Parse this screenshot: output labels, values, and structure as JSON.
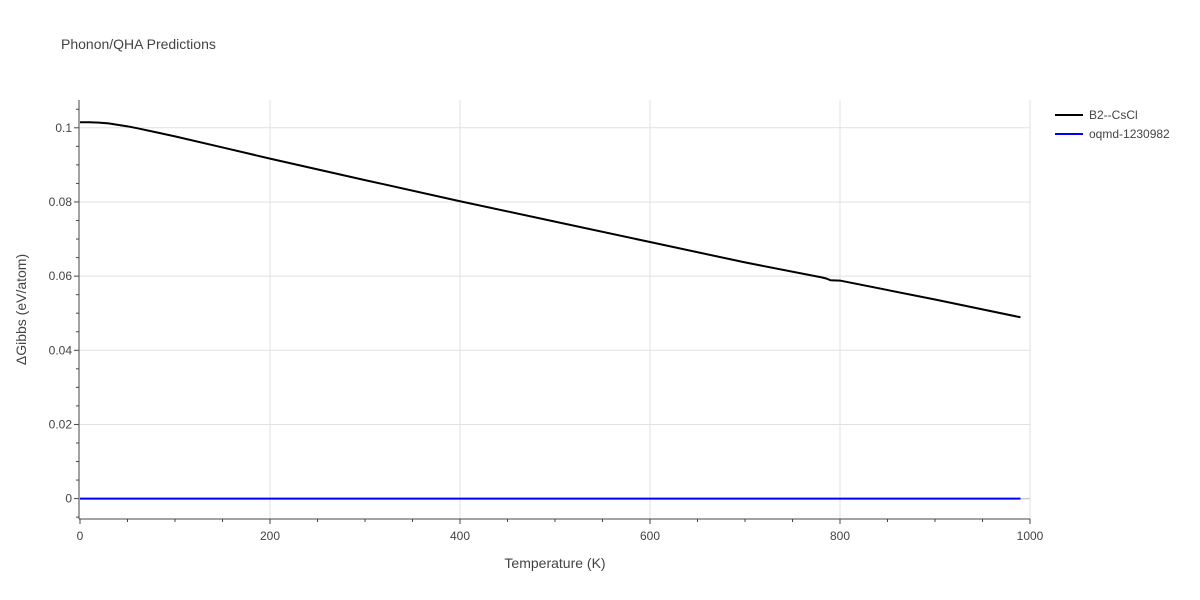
{
  "chart_data": {
    "type": "line",
    "title": "Phonon/QHA Predictions",
    "xlabel": "Temperature (K)",
    "ylabel": "ΔGibbs (eV/atom)",
    "xlim": [
      0,
      1000
    ],
    "ylim": [
      -0.0055,
      0.1075
    ],
    "x_ticks": [
      0,
      200,
      400,
      600,
      800,
      1000
    ],
    "x_tick_labels": [
      "0",
      "200",
      "400",
      "600",
      "800",
      "1000"
    ],
    "y_ticks": [
      0,
      0.02,
      0.04,
      0.06,
      0.08,
      0.1
    ],
    "y_tick_labels": [
      "0",
      "0.02",
      "0.04",
      "0.06",
      "0.08",
      "0.1"
    ],
    "grid": true,
    "legend_position": "top-right",
    "series": [
      {
        "name": "B2--CsCl",
        "color": "#000000",
        "x": [
          0,
          10,
          20,
          30,
          40,
          50,
          60,
          80,
          100,
          150,
          200,
          300,
          400,
          500,
          600,
          700,
          780,
          785,
          790,
          800,
          900,
          990
        ],
        "y": [
          0.1015,
          0.1015,
          0.1014,
          0.1012,
          0.1008,
          0.1004,
          0.0999,
          0.0988,
          0.0977,
          0.0947,
          0.0917,
          0.0859,
          0.0802,
          0.0747,
          0.0692,
          0.0637,
          0.0597,
          0.0594,
          0.0589,
          0.0588,
          0.0537,
          0.0489
        ]
      },
      {
        "name": "oqmd-1230982",
        "color": "#0000ff",
        "x": [
          0,
          990
        ],
        "y": [
          0,
          0
        ]
      }
    ]
  }
}
